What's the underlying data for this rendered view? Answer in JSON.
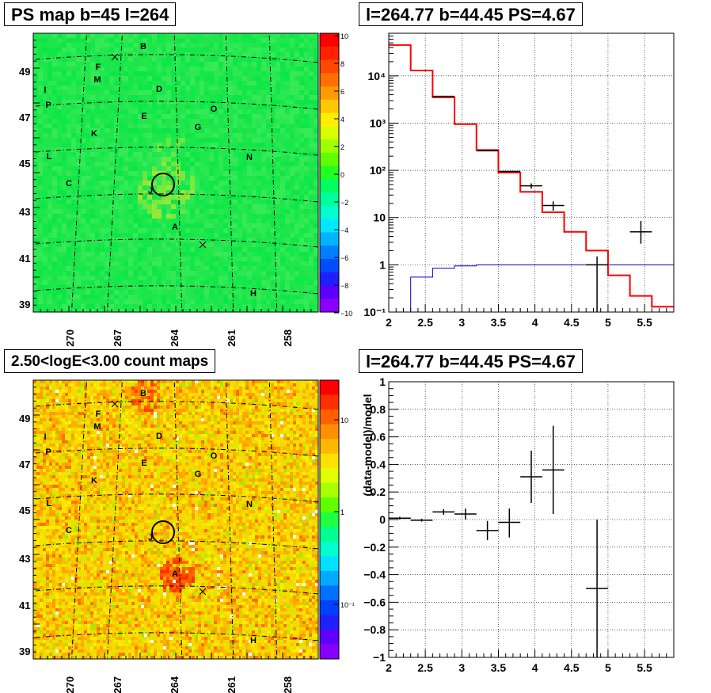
{
  "panels": {
    "top_left": {
      "title": "PS map b=45 l=264"
    },
    "bottom_left": {
      "title": "2.50<logE<3.00 count maps"
    },
    "top_right": {
      "title": "l=264.77 b=44.45 PS=4.67"
    },
    "bottom_right": {
      "title": "l=264.77 b=44.45 PS=4.67"
    }
  },
  "colors": {
    "map_green": "#22e84a",
    "frame": "#000000",
    "model_red": "#ff0000",
    "background_blue": "#0000cc"
  },
  "chart_data": [
    {
      "type": "heatmap",
      "title": "PS map b=45 l=264",
      "x_ticks": [
        "270",
        "267",
        "264",
        "261",
        "258"
      ],
      "y_ticks": [
        "49",
        "47",
        "45",
        "43",
        "41",
        "39"
      ],
      "colorbar": {
        "ticks": [
          "10",
          "8",
          "6",
          "4",
          "2",
          "0",
          "−2",
          "−4",
          "−6",
          "−8",
          "−10"
        ],
        "range": [
          -10,
          10
        ]
      },
      "markers": [
        "B",
        "F",
        "M",
        "I",
        "P",
        "D",
        "O",
        "E",
        "G",
        "K",
        "L",
        "N",
        "C",
        "J",
        "A",
        "H"
      ],
      "circle_center": "J"
    },
    {
      "type": "heatmap",
      "title": "2.50<logE<3.00 count maps",
      "x_ticks": [
        "270",
        "267",
        "264",
        "261",
        "258"
      ],
      "y_ticks": [
        "49",
        "47",
        "45",
        "43",
        "41",
        "39"
      ],
      "colorbar": {
        "ticks": [
          "10",
          "1",
          "10⁻¹"
        ],
        "scale": "log"
      },
      "markers": [
        "B",
        "F",
        "M",
        "I",
        "P",
        "D",
        "O",
        "E",
        "G",
        "K",
        "L",
        "N",
        "C",
        "J",
        "A",
        "H"
      ],
      "hotspots": [
        "B",
        "A"
      ]
    },
    {
      "type": "line",
      "title": "l=264.77 b=44.45 PS=4.67",
      "xlim": [
        2,
        5.9
      ],
      "yscale": "log",
      "ylim": [
        0.1,
        80000
      ],
      "x_ticks": [
        "2",
        "2.5",
        "3",
        "3.5",
        "4",
        "4.5",
        "5",
        "5.5"
      ],
      "y_ticks": [
        "10⁻¹",
        "1",
        "10",
        "10²",
        "10³",
        "10⁴"
      ],
      "grid": true,
      "model_bins": [
        2.0,
        2.3,
        2.6,
        2.9,
        3.2,
        3.5,
        3.8,
        4.1,
        4.4,
        4.7,
        5.0,
        5.3,
        5.6,
        5.9
      ],
      "model_values": [
        45000,
        13000,
        3500,
        950,
        270,
        90,
        35,
        13,
        5,
        2,
        0.6,
        0.22,
        0.13
      ],
      "background_values": [
        0.1,
        0.55,
        0.85,
        0.95,
        1.0,
        1.0,
        1.0,
        1.0,
        1.0,
        1.0,
        1.0,
        1.0,
        1.0
      ],
      "data_points": [
        {
          "x": 2.75,
          "xerr": 0.15,
          "y": 3700
        },
        {
          "x": 3.35,
          "xerr": 0.15,
          "y": 260
        },
        {
          "x": 3.65,
          "xerr": 0.15,
          "y": 95
        },
        {
          "x": 3.95,
          "xerr": 0.15,
          "y": 47,
          "ylo": 41,
          "yhi": 53
        },
        {
          "x": 4.25,
          "xerr": 0.15,
          "y": 18,
          "ylo": 14,
          "yhi": 22
        },
        {
          "x": 4.85,
          "xerr": 0.15,
          "y": 1.0,
          "ylo": 0.1,
          "yhi": 1.5
        },
        {
          "x": 5.45,
          "xerr": 0.15,
          "y": 5,
          "ylo": 2.8,
          "yhi": 8.5
        }
      ]
    },
    {
      "type": "scatter",
      "title": "l=264.77 b=44.45 PS=4.67",
      "ylabel": "(data-model)/model",
      "xlim": [
        2,
        5.9
      ],
      "ylim": [
        -1,
        1
      ],
      "x_ticks": [
        "2",
        "2.5",
        "3",
        "3.5",
        "4",
        "4.5",
        "5",
        "5.5"
      ],
      "y_ticks": [
        "1",
        "0.8",
        "0.6",
        "0.4",
        "0.2",
        "0",
        "−0.2",
        "−0.4",
        "−0.6",
        "−0.8",
        "−1"
      ],
      "grid": true,
      "data_points": [
        {
          "x": 2.15,
          "xerr": 0.15,
          "y": 0.01,
          "ylo": 0.0,
          "yhi": 0.02
        },
        {
          "x": 2.45,
          "xerr": 0.15,
          "y": -0.005,
          "ylo": -0.015,
          "yhi": 0.005
        },
        {
          "x": 2.75,
          "xerr": 0.15,
          "y": 0.055,
          "ylo": 0.035,
          "yhi": 0.075
        },
        {
          "x": 3.05,
          "xerr": 0.15,
          "y": 0.04,
          "ylo": 0.0,
          "yhi": 0.08
        },
        {
          "x": 3.35,
          "xerr": 0.15,
          "y": -0.08,
          "ylo": -0.15,
          "yhi": -0.01
        },
        {
          "x": 3.65,
          "xerr": 0.15,
          "y": -0.02,
          "ylo": -0.13,
          "yhi": 0.08
        },
        {
          "x": 3.95,
          "xerr": 0.15,
          "y": 0.31,
          "ylo": 0.12,
          "yhi": 0.5
        },
        {
          "x": 4.25,
          "xerr": 0.15,
          "y": 0.36,
          "ylo": 0.04,
          "yhi": 0.68
        },
        {
          "x": 4.85,
          "xerr": 0.15,
          "y": -0.5,
          "ylo": -1.0,
          "yhi": 0.0
        }
      ]
    }
  ]
}
